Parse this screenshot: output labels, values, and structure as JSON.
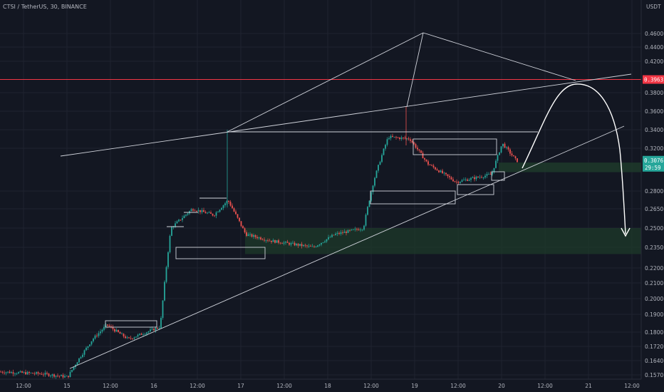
{
  "header": {
    "symbol_line": "CTSI / TetherUS, 30, BINANCE"
  },
  "chart_data": {
    "type": "candlestick",
    "ylabel": "USDT",
    "scale": "log",
    "ylim": [
      0.155,
      0.475
    ],
    "price_ticks": [
      "0.4600",
      "0.4400",
      "0.4200",
      "0.3800",
      "0.3600",
      "0.3400",
      "0.3200",
      "0.2800",
      "0.2650",
      "0.2500",
      "0.2350",
      "0.2200",
      "0.2100",
      "0.2000",
      "0.1900",
      "0.1800",
      "0.1720",
      "0.1640",
      "0.1570"
    ],
    "time_ticks": [
      "12:00",
      "15",
      "12:00",
      "16",
      "12:00",
      "17",
      "12:00",
      "18",
      "12:00",
      "19",
      "12:00",
      "20",
      "12:00",
      "21",
      "12:00"
    ],
    "current_price": "0.3076",
    "countdown": "29:59",
    "resistance_level": "0.3963",
    "colors": {
      "up": "#26a69a",
      "down": "#ef5350",
      "background": "#131722",
      "zone": "#1e3a2a",
      "resistance": "#f23645",
      "lines": "#d1d4dc"
    },
    "series_keypoints": [
      {
        "t": 0,
        "price": 0.1585
      },
      {
        "t": 60,
        "price": 0.1575
      },
      {
        "t": 95,
        "price": 0.156
      },
      {
        "t": 130,
        "price": 0.176
      },
      {
        "t": 150,
        "price": 0.184
      },
      {
        "t": 180,
        "price": 0.176
      },
      {
        "t": 225,
        "price": 0.183
      },
      {
        "t": 240,
        "price": 0.25
      },
      {
        "t": 270,
        "price": 0.265
      },
      {
        "t": 300,
        "price": 0.26
      },
      {
        "t": 320,
        "price": 0.272
      },
      {
        "t": 345,
        "price": 0.245
      },
      {
        "t": 380,
        "price": 0.24
      },
      {
        "t": 440,
        "price": 0.235
      },
      {
        "t": 470,
        "price": 0.245
      },
      {
        "t": 510,
        "price": 0.25
      },
      {
        "t": 525,
        "price": 0.29
      },
      {
        "t": 545,
        "price": 0.332
      },
      {
        "t": 575,
        "price": 0.33
      },
      {
        "t": 600,
        "price": 0.305
      },
      {
        "t": 640,
        "price": 0.288
      },
      {
        "t": 690,
        "price": 0.295
      },
      {
        "t": 705,
        "price": 0.325
      },
      {
        "t": 725,
        "price": 0.3076
      }
    ]
  }
}
